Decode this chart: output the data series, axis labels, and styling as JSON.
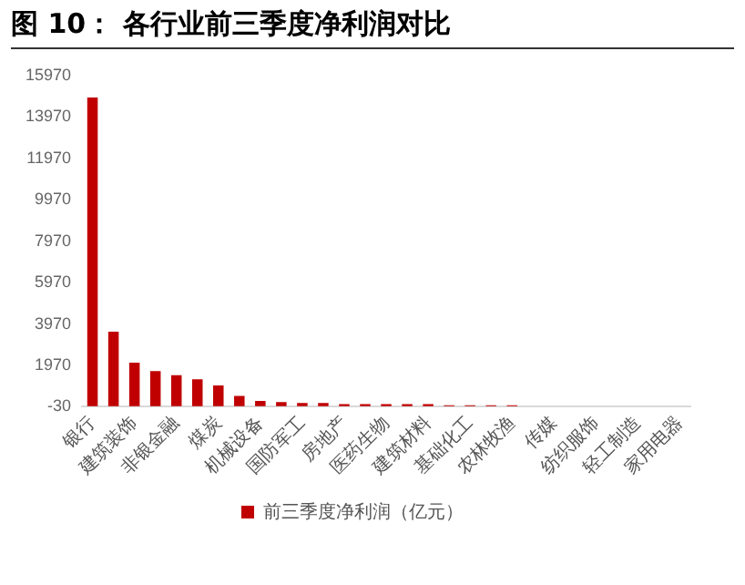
{
  "chart_data": {
    "type": "bar",
    "title": "图 10： 各行业前三季度净利润对比",
    "categories": [
      "银行",
      null,
      "建筑装饰",
      null,
      "非银金融",
      null,
      "煤炭",
      null,
      "机械设备",
      null,
      "国防军工",
      null,
      "房地产",
      null,
      "医药生物",
      null,
      "建筑材料",
      null,
      "基础化工",
      null,
      "农林牧渔",
      null,
      "传媒",
      null,
      "纺织服饰",
      null,
      "轻工制造",
      null,
      "家用电器"
    ],
    "series": [
      {
        "name": "前三季度净利润（亿元）",
        "color": "#c00000",
        "values": [
          14900,
          3600,
          2100,
          1700,
          1500,
          1300,
          1000,
          500,
          250,
          200,
          150,
          150,
          100,
          100,
          100,
          100,
          100,
          50,
          50,
          50,
          50,
          null,
          null,
          null,
          null,
          null,
          null,
          null,
          null
        ]
      }
    ],
    "ylim": [
      -30,
      15970
    ],
    "yticks": [
      -30,
      1970,
      3970,
      5970,
      7970,
      9970,
      11970,
      13970,
      15970
    ],
    "grid": false,
    "legend": "bottom"
  }
}
